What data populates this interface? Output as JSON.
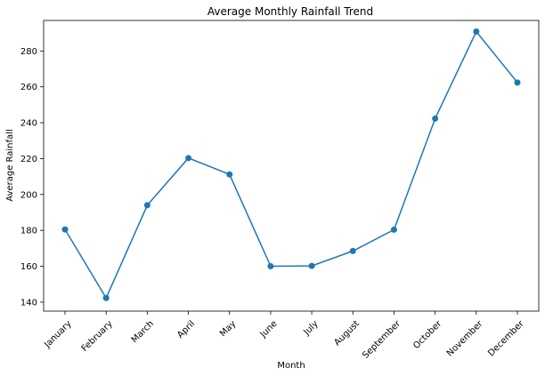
{
  "chart_data": {
    "type": "line",
    "title": "Average Monthly Rainfall Trend",
    "xlabel": "Month",
    "ylabel": "Average Rainfall",
    "categories": [
      "January",
      "February",
      "March",
      "April",
      "May",
      "June",
      "July",
      "August",
      "September",
      "October",
      "November",
      "December"
    ],
    "series": [
      {
        "values": [
          180.5,
          142.3,
          194.0,
          220.3,
          211.2,
          160.0,
          160.2,
          168.5,
          180.4,
          242.3,
          290.8,
          262.4
        ],
        "color": "#1f77b4",
        "marker": "circle"
      }
    ],
    "ylim": [
      135,
      297
    ],
    "yticks": [
      140,
      160,
      180,
      200,
      220,
      240,
      260,
      280
    ],
    "grid": false,
    "legend": "none"
  }
}
